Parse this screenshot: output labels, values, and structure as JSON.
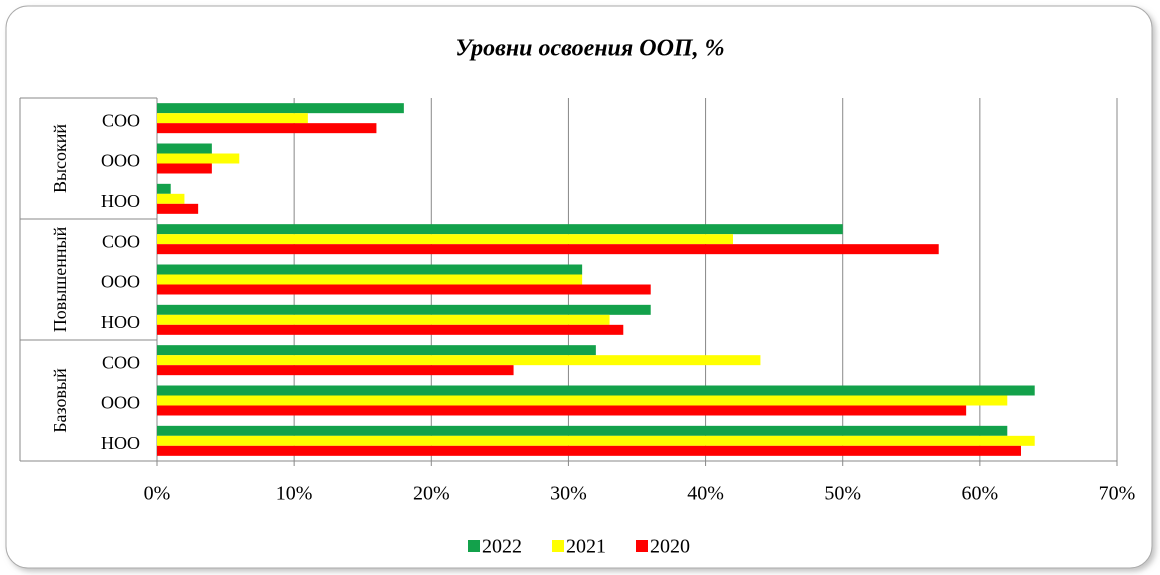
{
  "chart_data": {
    "type": "bar",
    "orientation": "horizontal",
    "title": "Уровни освоения ООП, %",
    "groups": [
      {
        "name": "Высокий",
        "categories": [
          "СОО",
          "ООО",
          "НОО"
        ]
      },
      {
        "name": "Повышенный",
        "categories": [
          "СОО",
          "ООО",
          "НОО"
        ]
      },
      {
        "name": "Базовый",
        "categories": [
          "СОО",
          "ООО",
          "НОО"
        ]
      }
    ],
    "series": [
      {
        "name": "2022",
        "color": "#13a14b",
        "values": [
          18,
          4,
          1,
          50,
          31,
          36,
          32,
          64,
          62
        ]
      },
      {
        "name": "2021",
        "color": "#ffff00",
        "values": [
          11,
          6,
          2,
          42,
          31,
          33,
          44,
          62,
          64
        ]
      },
      {
        "name": "2020",
        "color": "#ff0000",
        "values": [
          16,
          4,
          3,
          57,
          36,
          34,
          26,
          59,
          63
        ]
      }
    ],
    "xlim": [
      0,
      70
    ],
    "xticks": [
      {
        "value": 0,
        "label": "0%"
      },
      {
        "value": 10,
        "label": "10%"
      },
      {
        "value": 20,
        "label": "20%"
      },
      {
        "value": 30,
        "label": "30%"
      },
      {
        "value": 40,
        "label": "40%"
      },
      {
        "value": 50,
        "label": "50%"
      },
      {
        "value": 60,
        "label": "60%"
      },
      {
        "value": 70,
        "label": "70%"
      }
    ],
    "grid": true,
    "legend": "bottom"
  }
}
